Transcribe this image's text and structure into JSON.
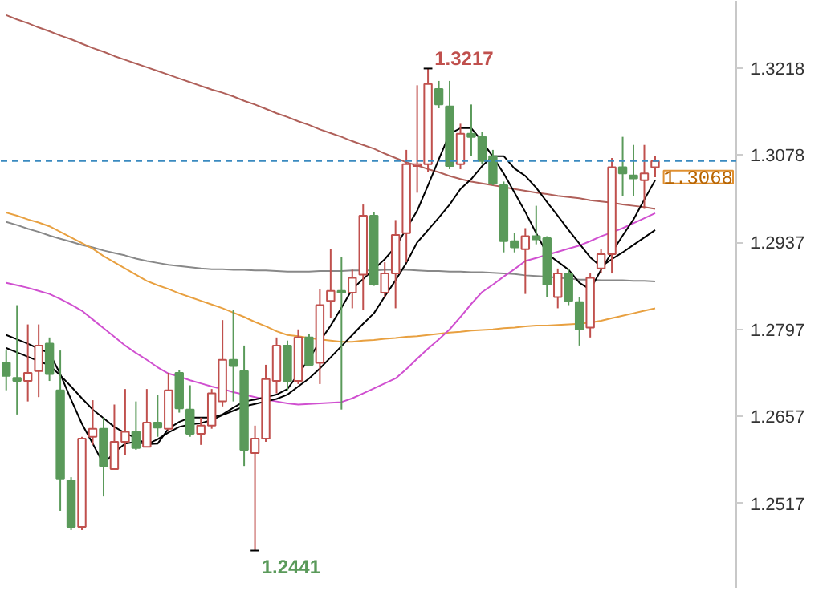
{
  "chart_data": {
    "type": "candlestick",
    "categories": [
      null,
      null,
      null,
      null,
      null,
      null,
      null,
      null,
      null,
      null,
      null,
      null,
      null,
      null,
      null,
      null,
      null,
      null,
      null,
      null,
      null,
      null,
      null,
      null,
      null,
      null,
      null,
      null,
      null,
      null,
      null,
      null,
      null,
      null,
      null,
      null,
      null,
      null,
      null,
      null,
      null,
      null,
      null,
      null,
      null,
      null,
      null,
      null,
      null,
      null,
      null,
      null,
      null,
      null,
      null,
      null,
      null,
      null,
      null,
      null,
      null
    ],
    "ohlc": [
      [
        1.2743,
        1.2763,
        1.2699,
        1.2722
      ],
      [
        1.2719,
        1.2836,
        1.266,
        1.2714
      ],
      [
        1.2714,
        1.2805,
        1.2681,
        1.2727
      ],
      [
        1.273,
        1.2805,
        1.2688,
        1.2771
      ],
      [
        1.2774,
        1.2784,
        1.2714,
        1.2725
      ],
      [
        1.2699,
        1.2763,
        1.2505,
        1.2557
      ],
      [
        1.2554,
        1.2559,
        1.2474,
        1.2479
      ],
      [
        1.2479,
        1.2624,
        1.2474,
        1.2621
      ],
      [
        1.2624,
        1.2683,
        1.2611,
        1.2637
      ],
      [
        1.2637,
        1.2655,
        1.2528,
        1.2577
      ],
      [
        1.2572,
        1.2676,
        1.2572,
        1.2616
      ],
      [
        1.2616,
        1.2701,
        1.2595,
        1.2632
      ],
      [
        1.2632,
        1.2681,
        1.2603,
        1.2606
      ],
      [
        1.2608,
        1.2701,
        1.2608,
        1.2647
      ],
      [
        1.2647,
        1.2691,
        1.2624,
        1.2639
      ],
      [
        1.2637,
        1.2727,
        1.2634,
        1.2699
      ],
      [
        1.2727,
        1.2732,
        1.2663,
        1.267
      ],
      [
        1.2668,
        1.2707,
        1.2624,
        1.2629
      ],
      [
        1.2629,
        1.2655,
        1.2611,
        1.2642
      ],
      [
        1.2642,
        1.2701,
        1.2637,
        1.2694
      ],
      [
        1.2681,
        1.2812,
        1.2673,
        1.2748
      ],
      [
        1.2748,
        1.2828,
        1.2681,
        1.2738
      ],
      [
        1.273,
        1.2771,
        1.2577,
        1.2603
      ],
      [
        1.2598,
        1.2642,
        1.2441,
        1.2621
      ],
      [
        1.2621,
        1.274,
        1.2616,
        1.2717
      ],
      [
        1.2714,
        1.2784,
        1.2694,
        1.2771
      ],
      [
        1.2771,
        1.2779,
        1.2699,
        1.2714
      ],
      [
        1.2714,
        1.2797,
        1.2709,
        1.2784
      ],
      [
        1.2784,
        1.2789,
        1.2738,
        1.274
      ],
      [
        1.2743,
        1.2862,
        1.2709,
        1.2836
      ],
      [
        1.2843,
        1.2926,
        1.2815,
        1.2859
      ],
      [
        1.2859,
        1.2913,
        1.2668,
        1.2856
      ],
      [
        1.2856,
        1.2893,
        1.2831,
        1.288
      ],
      [
        1.2885,
        1.2998,
        1.2828,
        1.298
      ],
      [
        1.298,
        1.2986,
        1.2867,
        1.2869
      ],
      [
        1.2856,
        1.2905,
        1.2849,
        1.2887
      ],
      [
        1.2887,
        1.2973,
        1.2831,
        1.2949
      ],
      [
        1.2952,
        1.3086,
        1.2905,
        1.3063
      ],
      [
        1.306,
        1.319,
        1.3017,
        1.3063
      ],
      [
        1.3063,
        1.3217,
        1.305,
        1.3192
      ],
      [
        1.3184,
        1.3197,
        1.3153,
        1.3159
      ],
      [
        1.3156,
        1.3197,
        1.3055,
        1.306
      ],
      [
        1.3063,
        1.3128,
        1.3055,
        1.3112
      ],
      [
        1.3112,
        1.3159,
        1.3076,
        1.3107
      ],
      [
        1.3107,
        1.3115,
        1.3063,
        1.3068
      ],
      [
        1.3076,
        1.3086,
        1.3029,
        1.3032
      ],
      [
        1.3029,
        1.3035,
        1.2921,
        1.2939
      ],
      [
        1.2939,
        1.2952,
        1.2921,
        1.2929
      ],
      [
        1.2926,
        1.296,
        1.2854,
        1.2947
      ],
      [
        1.2947,
        1.2996,
        1.2934,
        1.2942
      ],
      [
        1.2944,
        1.2947,
        1.2849,
        1.2869
      ],
      [
        1.2849,
        1.2895,
        1.2831,
        1.2887
      ],
      [
        1.2887,
        1.2895,
        1.2836,
        1.2843
      ],
      [
        1.2841,
        1.2849,
        1.2771,
        1.2797
      ],
      [
        1.28,
        1.2887,
        1.2784,
        1.288
      ],
      [
        1.2895,
        1.2926,
        1.2887,
        1.2918
      ],
      [
        1.2918,
        1.3073,
        1.2887,
        1.3058
      ],
      [
        1.3058,
        1.3107,
        1.3011,
        1.3048
      ],
      [
        1.3045,
        1.3094,
        1.3011,
        1.304
      ],
      [
        1.3037,
        1.3094,
        1.2991,
        1.3048
      ],
      [
        1.3058,
        1.3076,
        1.3042,
        1.3068
      ]
    ],
    "colors": [
      "#5a9a5a",
      "#5a9a5a",
      "#c0504d",
      "#c0504d",
      "#5a9a5a",
      "#5a9a5a",
      "#5a9a5a",
      "#c0504d",
      "#c0504d",
      "#5a9a5a",
      "#c0504d",
      "#c0504d",
      "#5a9a5a",
      "#c0504d",
      "#5a9a5a",
      "#c0504d",
      "#5a9a5a",
      "#5a9a5a",
      "#c0504d",
      "#c0504d",
      "#c0504d",
      "#5a9a5a",
      "#5a9a5a",
      "#c0504d",
      "#c0504d",
      "#c0504d",
      "#5a9a5a",
      "#c0504d",
      "#5a9a5a",
      "#c0504d",
      "#c0504d",
      "#5a9a5a",
      "#c0504d",
      "#c0504d",
      "#5a9a5a",
      "#c0504d",
      "#c0504d",
      "#c0504d",
      "#c0504d",
      "#c0504d",
      "#5a9a5a",
      "#5a9a5a",
      "#c0504d",
      "#5a9a5a",
      "#5a9a5a",
      "#5a9a5a",
      "#5a9a5a",
      "#5a9a5a",
      "#c0504d",
      "#5a9a5a",
      "#5a9a5a",
      "#c0504d",
      "#5a9a5a",
      "#5a9a5a",
      "#c0504d",
      "#c0504d",
      "#c0504d",
      "#5a9a5a",
      "#5a9a5a",
      "#c0504d",
      "#c0504d"
    ],
    "series": [
      {
        "type": "line",
        "color": "#b0605a",
        "values": [
          1.3303,
          1.3296,
          1.329,
          1.3283,
          1.3277,
          1.327,
          1.3264,
          1.3257,
          1.325,
          1.3244,
          1.3237,
          1.3231,
          1.3225,
          1.3219,
          1.3213,
          1.3207,
          1.3201,
          1.3195,
          1.3189,
          1.3183,
          1.3178,
          1.3172,
          1.3165,
          1.3159,
          1.3152,
          1.3145,
          1.3139,
          1.3132,
          1.3126,
          1.3119,
          1.3113,
          1.3107,
          1.31,
          1.3094,
          1.3088,
          1.308,
          1.3073,
          1.3066,
          1.3061,
          1.3055,
          1.305,
          1.3044,
          1.3039,
          1.3035,
          1.3032,
          1.3029,
          1.3026,
          1.3023,
          1.302,
          1.3017,
          1.3015,
          1.3012,
          1.301,
          1.3008,
          1.3005,
          1.3003,
          1.3001,
          1.2998,
          1.2996,
          1.2994,
          1.2991
        ]
      },
      {
        "type": "line",
        "color": "#888888",
        "values": [
          1.297,
          1.2965,
          1.2959,
          1.2954,
          1.2948,
          1.2943,
          1.2938,
          1.2933,
          1.2929,
          1.2924,
          1.292,
          1.2916,
          1.2911,
          1.2907,
          1.2904,
          1.2901,
          1.2899,
          1.2897,
          1.2895,
          1.2894,
          1.2894,
          1.2893,
          1.2893,
          1.2892,
          1.2892,
          1.2891,
          1.289,
          1.289,
          1.289,
          1.2891,
          1.2891,
          1.2891,
          1.2892,
          1.2892,
          1.2892,
          1.2893,
          1.2893,
          1.2893,
          1.2892,
          1.2891,
          1.2891,
          1.289,
          1.289,
          1.2889,
          1.2889,
          1.2888,
          1.2887,
          1.2886,
          1.2884,
          1.2883,
          1.2882,
          1.288,
          1.2879,
          1.2877,
          1.2877,
          1.2876,
          1.2876,
          1.2876,
          1.2875,
          1.2875,
          1.2874
        ]
      },
      {
        "type": "line",
        "color": "#e8a040",
        "values": [
          1.2985,
          1.298,
          1.2974,
          1.2969,
          1.2963,
          1.2954,
          1.2945,
          1.2936,
          1.2927,
          1.2915,
          1.2905,
          1.2895,
          1.2885,
          1.2875,
          1.2868,
          1.2862,
          1.2855,
          1.2849,
          1.2843,
          1.2837,
          1.2831,
          1.2824,
          1.2817,
          1.2809,
          1.2802,
          1.2794,
          1.2788,
          1.2786,
          1.2783,
          1.2781,
          1.2779,
          1.2777,
          1.2777,
          1.2779,
          1.278,
          1.2782,
          1.2783,
          1.2785,
          1.2786,
          1.2788,
          1.279,
          1.2792,
          1.2793,
          1.2795,
          1.2796,
          1.2797,
          1.2799,
          1.28,
          1.2802,
          1.2803,
          1.2803,
          1.2804,
          1.2805,
          1.2806,
          1.2808,
          1.2811,
          1.2815,
          1.2819,
          1.2823,
          1.2827,
          1.2831
        ]
      },
      {
        "type": "line",
        "color": "#d050d0",
        "values": [
          1.2872,
          1.2868,
          1.2864,
          1.2859,
          1.2854,
          1.2846,
          1.2837,
          1.2827,
          1.2813,
          1.2799,
          1.2785,
          1.2771,
          1.2759,
          1.2748,
          1.2736,
          1.2726,
          1.2721,
          1.2715,
          1.271,
          1.2705,
          1.2701,
          1.2696,
          1.2692,
          1.2688,
          1.2684,
          1.2681,
          1.2678,
          1.2676,
          1.2677,
          1.2678,
          1.2679,
          1.268,
          1.2686,
          1.2694,
          1.2702,
          1.271,
          1.2718,
          1.2733,
          1.275,
          1.2766,
          1.2781,
          1.2797,
          1.2817,
          1.2838,
          1.2857,
          1.2869,
          1.2882,
          1.2894,
          1.2907,
          1.2912,
          1.2917,
          1.2922,
          1.2927,
          1.2932,
          1.2939,
          1.2947,
          1.2953,
          1.296,
          1.2968,
          1.2976,
          1.2984
        ]
      },
      {
        "type": "line",
        "color": "#000000",
        "values": [
          1.2788,
          1.2781,
          1.2774,
          1.2766,
          1.2759,
          1.2725,
          1.2684,
          1.2645,
          1.2613,
          1.258,
          1.2599,
          1.2613,
          1.2616,
          1.2612,
          1.2613,
          1.2637,
          1.2648,
          1.2655,
          1.2655,
          1.2655,
          1.266,
          1.2671,
          1.2681,
          1.2684,
          1.2688,
          1.2692,
          1.2701,
          1.2725,
          1.2749,
          1.2778,
          1.2803,
          1.2832,
          1.2862,
          1.2878,
          1.2894,
          1.291,
          1.293,
          1.2959,
          1.2988,
          1.3029,
          1.3071,
          1.3112,
          1.3121,
          1.3121,
          1.31,
          1.3075,
          1.3048,
          1.3017,
          1.2986,
          1.2952,
          1.2919,
          1.2906,
          1.2893,
          1.2872,
          1.2861,
          1.2893,
          1.2921,
          1.2948,
          1.2974,
          1.3006,
          1.3037
        ]
      },
      {
        "type": "line",
        "color": "#000000",
        "values": [
          1.2767,
          1.276,
          1.2753,
          1.2746,
          1.2739,
          1.2723,
          1.2705,
          1.2686,
          1.2668,
          1.2654,
          1.264,
          1.263,
          1.2622,
          1.2612,
          1.262,
          1.2631,
          1.264,
          1.2644,
          1.2646,
          1.2651,
          1.2659,
          1.2666,
          1.2673,
          1.2677,
          1.2681,
          1.2685,
          1.2692,
          1.2705,
          1.2718,
          1.2734,
          1.2752,
          1.277,
          1.2788,
          1.2806,
          1.2823,
          1.285,
          1.2876,
          1.2904,
          1.2937,
          1.2957,
          1.2977,
          1.2998,
          1.3023,
          1.3039,
          1.306,
          1.3076,
          1.3076,
          1.3056,
          1.3044,
          1.3025,
          1.3002,
          1.298,
          1.2957,
          1.2935,
          1.2913,
          1.2898,
          1.291,
          1.2921,
          1.2933,
          1.2945,
          1.2957
        ]
      }
    ],
    "ylim": [
      1.2381,
      1.3326
    ],
    "yticks": [
      1.2517,
      1.2657,
      1.2797,
      1.2937,
      1.3078,
      1.3218
    ],
    "ref_lines": [
      {
        "axis": "y",
        "value": 1.3068,
        "label": "1.3068",
        "color": "#3a8ac0",
        "line_style": "dashed"
      }
    ],
    "annotations": [
      "1.3217",
      "1.2441"
    ]
  }
}
